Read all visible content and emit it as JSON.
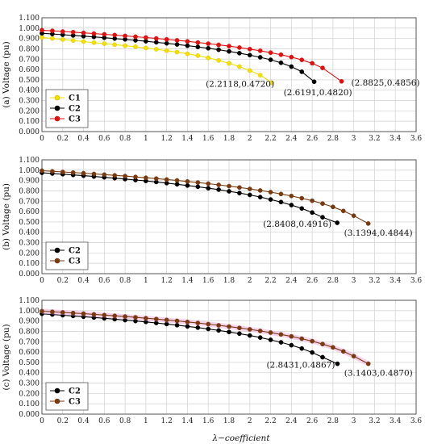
{
  "x_label": "λ−coefficient",
  "chart_data": [
    {
      "type": "line",
      "panel": "(a)",
      "ylabel": "(a) Voltage (pu)",
      "xlim": [
        0,
        3.6
      ],
      "ylim": [
        0,
        1.1
      ],
      "x_ticks": [
        "0",
        "0.2",
        "0.4",
        "0.6",
        "0.8",
        "1",
        "1.2",
        "1.4",
        "1.6",
        "1.8",
        "2",
        "2.2",
        "2.4",
        "2.6",
        "2.8",
        "3",
        "3.2",
        "3.4",
        "3.6"
      ],
      "y_ticks": [
        "0.000",
        "0.100",
        "0.200",
        "0.300",
        "0.400",
        "0.500",
        "0.600",
        "0.700",
        "0.800",
        "0.900",
        "1.000",
        "1.100"
      ],
      "grid": true,
      "legend": "bottom-left",
      "series": [
        {
          "name": "C1",
          "color": "#f4e000",
          "x": [
            0,
            0.1,
            0.2,
            0.3,
            0.4,
            0.5,
            0.6,
            0.7,
            0.8,
            0.9,
            1.0,
            1.1,
            1.2,
            1.3,
            1.4,
            1.5,
            1.6,
            1.7,
            1.8,
            1.9,
            2.0,
            2.1,
            2.2118
          ],
          "y": [
            0.91,
            0.9,
            0.89,
            0.88,
            0.87,
            0.86,
            0.85,
            0.84,
            0.83,
            0.82,
            0.808,
            0.796,
            0.782,
            0.768,
            0.752,
            0.734,
            0.712,
            0.688,
            0.66,
            0.628,
            0.59,
            0.545,
            0.472
          ]
        },
        {
          "name": "C2",
          "color": "#000000",
          "x": [
            0,
            0.1,
            0.2,
            0.3,
            0.4,
            0.5,
            0.6,
            0.7,
            0.8,
            0.9,
            1.0,
            1.1,
            1.2,
            1.3,
            1.4,
            1.5,
            1.6,
            1.7,
            1.8,
            1.9,
            2.0,
            2.1,
            2.2,
            2.3,
            2.4,
            2.5,
            2.6191
          ],
          "y": [
            0.95,
            0.943,
            0.936,
            0.929,
            0.922,
            0.915,
            0.907,
            0.899,
            0.891,
            0.882,
            0.873,
            0.863,
            0.853,
            0.842,
            0.83,
            0.818,
            0.805,
            0.791,
            0.775,
            0.758,
            0.739,
            0.718,
            0.694,
            0.665,
            0.628,
            0.578,
            0.482
          ]
        },
        {
          "name": "C3",
          "color": "#e01010",
          "x": [
            0,
            0.1,
            0.2,
            0.3,
            0.4,
            0.5,
            0.6,
            0.7,
            0.8,
            0.9,
            1.0,
            1.1,
            1.2,
            1.3,
            1.4,
            1.5,
            1.6,
            1.7,
            1.8,
            1.9,
            2.0,
            2.1,
            2.2,
            2.3,
            2.4,
            2.5,
            2.6,
            2.7,
            2.8825
          ],
          "y": [
            0.98,
            0.974,
            0.967,
            0.961,
            0.954,
            0.947,
            0.94,
            0.933,
            0.925,
            0.917,
            0.909,
            0.9,
            0.891,
            0.882,
            0.872,
            0.861,
            0.85,
            0.838,
            0.826,
            0.812,
            0.797,
            0.781,
            0.763,
            0.743,
            0.72,
            0.693,
            0.66,
            0.615,
            0.4856
          ]
        }
      ],
      "annotations": [
        {
          "text": "(2.2118,0.4720)",
          "x": 2.2118,
          "y": 0.472
        },
        {
          "text": "(2.6191,0.4820)",
          "x": 2.6191,
          "y": 0.482
        },
        {
          "text": "(2.8825,0.4856)",
          "x": 2.8825,
          "y": 0.4856
        }
      ]
    },
    {
      "type": "line",
      "panel": "(b)",
      "ylabel": "(b) Voltage (pu)",
      "xlim": [
        0,
        3.6
      ],
      "ylim": [
        0,
        1.1
      ],
      "x_ticks": [
        "0",
        "0.2",
        "0.4",
        "0.6",
        "0.8",
        "1",
        "1.2",
        "1.4",
        "1.6",
        "1.8",
        "2",
        "2.2",
        "2.4",
        "2.6",
        "2.8",
        "3",
        "3.2",
        "3.4",
        "3.6"
      ],
      "y_ticks": [
        "0.000",
        "0.100",
        "0.200",
        "0.300",
        "0.400",
        "0.500",
        "0.600",
        "0.700",
        "0.800",
        "0.900",
        "1.000",
        "1.100"
      ],
      "grid": true,
      "legend": "bottom-left",
      "series": [
        {
          "name": "C2",
          "color": "#000000",
          "x": [
            0,
            0.1,
            0.2,
            0.3,
            0.4,
            0.5,
            0.6,
            0.7,
            0.8,
            0.9,
            1.0,
            1.1,
            1.2,
            1.3,
            1.4,
            1.5,
            1.6,
            1.7,
            1.8,
            1.9,
            2.0,
            2.1,
            2.2,
            2.3,
            2.4,
            2.5,
            2.6,
            2.7,
            2.8408
          ],
          "y": [
            0.975,
            0.968,
            0.961,
            0.954,
            0.947,
            0.939,
            0.931,
            0.923,
            0.914,
            0.905,
            0.896,
            0.886,
            0.875,
            0.864,
            0.852,
            0.84,
            0.826,
            0.812,
            0.796,
            0.779,
            0.761,
            0.74,
            0.717,
            0.692,
            0.663,
            0.63,
            0.591,
            0.545,
            0.4916
          ]
        },
        {
          "name": "C3",
          "color": "#7a3a10",
          "x": [
            0,
            0.1,
            0.2,
            0.3,
            0.4,
            0.5,
            0.6,
            0.7,
            0.8,
            0.9,
            1.0,
            1.1,
            1.2,
            1.3,
            1.4,
            1.5,
            1.6,
            1.7,
            1.8,
            1.9,
            2.0,
            2.1,
            2.2,
            2.3,
            2.4,
            2.5,
            2.6,
            2.7,
            2.8,
            2.9,
            3.0,
            3.1394
          ],
          "y": [
            0.995,
            0.989,
            0.983,
            0.977,
            0.971,
            0.964,
            0.957,
            0.95,
            0.943,
            0.935,
            0.927,
            0.919,
            0.91,
            0.901,
            0.891,
            0.881,
            0.87,
            0.858,
            0.846,
            0.833,
            0.819,
            0.804,
            0.788,
            0.77,
            0.751,
            0.729,
            0.705,
            0.677,
            0.645,
            0.606,
            0.56,
            0.4844
          ]
        }
      ],
      "annotations": [
        {
          "text": "(2.8408,0.4916)",
          "x": 2.8408,
          "y": 0.4916
        },
        {
          "text": "(3.1394,0.4844)",
          "x": 3.1394,
          "y": 0.4844
        }
      ]
    },
    {
      "type": "line",
      "panel": "(c)",
      "ylabel": "(c) Voltage (pu)",
      "xlim": [
        0,
        3.6
      ],
      "ylim": [
        0,
        1.1
      ],
      "x_ticks": [
        "0",
        "0.2",
        "0.4",
        "0.6",
        "0.8",
        "1",
        "1.2",
        "1.4",
        "1.6",
        "1.8",
        "2",
        "2.2",
        "2.4",
        "2.6",
        "2.8",
        "3",
        "3.2",
        "3.4",
        "3.6"
      ],
      "y_ticks": [
        "0.000",
        "0.100",
        "0.200",
        "0.300",
        "0.400",
        "0.500",
        "0.600",
        "0.700",
        "0.800",
        "0.900",
        "1.000",
        "1.100"
      ],
      "grid": true,
      "legend": "bottom-left",
      "series": [
        {
          "name": "C2",
          "color": "#000000",
          "x": [
            0,
            0.1,
            0.2,
            0.3,
            0.4,
            0.5,
            0.6,
            0.7,
            0.8,
            0.9,
            1.0,
            1.1,
            1.2,
            1.3,
            1.4,
            1.5,
            1.6,
            1.7,
            1.8,
            1.9,
            2.0,
            2.1,
            2.2,
            2.3,
            2.4,
            2.5,
            2.6,
            2.7,
            2.8431
          ],
          "y": [
            0.97,
            0.963,
            0.956,
            0.949,
            0.942,
            0.934,
            0.926,
            0.918,
            0.909,
            0.9,
            0.891,
            0.881,
            0.871,
            0.86,
            0.848,
            0.836,
            0.823,
            0.809,
            0.794,
            0.778,
            0.76,
            0.74,
            0.718,
            0.694,
            0.666,
            0.634,
            0.596,
            0.55,
            0.4867
          ]
        },
        {
          "name": "C3",
          "color": "#7a3a10",
          "x": [
            0,
            0.1,
            0.2,
            0.3,
            0.4,
            0.5,
            0.6,
            0.7,
            0.8,
            0.9,
            1.0,
            1.1,
            1.2,
            1.3,
            1.4,
            1.5,
            1.6,
            1.7,
            1.8,
            1.9,
            2.0,
            2.1,
            2.2,
            2.3,
            2.4,
            2.5,
            2.6,
            2.7,
            2.8,
            2.9,
            3.0,
            3.1403
          ],
          "y": [
            0.995,
            0.989,
            0.983,
            0.977,
            0.971,
            0.964,
            0.957,
            0.95,
            0.943,
            0.935,
            0.927,
            0.919,
            0.91,
            0.901,
            0.891,
            0.881,
            0.87,
            0.858,
            0.846,
            0.833,
            0.819,
            0.804,
            0.788,
            0.77,
            0.751,
            0.729,
            0.705,
            0.677,
            0.645,
            0.606,
            0.56,
            0.487
          ]
        }
      ],
      "annotations": [
        {
          "text": "(2.8431,0.4867)",
          "x": 2.8431,
          "y": 0.4867
        },
        {
          "text": "(3.1403,0.4870)",
          "x": 3.1403,
          "y": 0.487
        }
      ]
    }
  ]
}
